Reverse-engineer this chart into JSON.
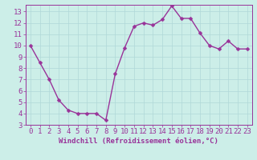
{
  "x": [
    0,
    1,
    2,
    3,
    4,
    5,
    6,
    7,
    8,
    9,
    10,
    11,
    12,
    13,
    14,
    15,
    16,
    17,
    18,
    19,
    20,
    21,
    22,
    23
  ],
  "y": [
    10,
    8.5,
    7,
    5.2,
    4.3,
    4.0,
    4.0,
    4.0,
    3.4,
    7.5,
    9.8,
    11.7,
    12.0,
    11.8,
    12.3,
    13.5,
    12.4,
    12.4,
    11.1,
    10.0,
    9.7,
    10.4,
    9.7,
    9.7
  ],
  "line_color": "#993399",
  "marker_color": "#993399",
  "bg_color": "#cceee8",
  "grid_color": "#b0d8d8",
  "xlabel": "Windchill (Refroidissement éolien,°C)",
  "xlabel_color": "#993399",
  "tick_color": "#993399",
  "xlim": [
    -0.5,
    23.5
  ],
  "ylim": [
    3,
    13.6
  ],
  "yticks": [
    3,
    4,
    5,
    6,
    7,
    8,
    9,
    10,
    11,
    12,
    13
  ],
  "xticks": [
    0,
    1,
    2,
    3,
    4,
    5,
    6,
    7,
    8,
    9,
    10,
    11,
    12,
    13,
    14,
    15,
    16,
    17,
    18,
    19,
    20,
    21,
    22,
    23
  ],
  "font_size": 6.5,
  "marker_size": 2.5,
  "line_width": 1.0
}
